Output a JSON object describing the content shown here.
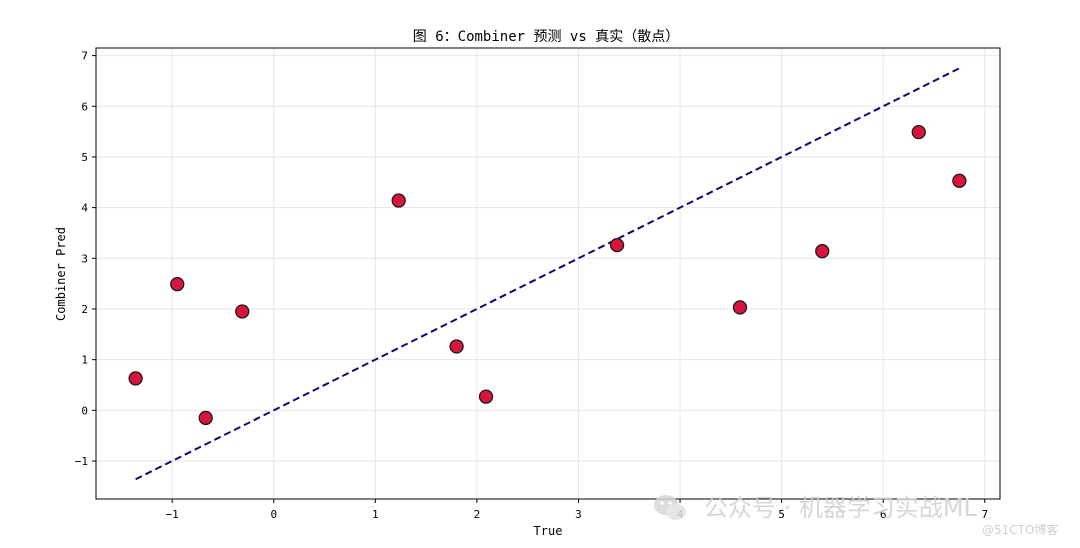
{
  "chart_data": {
    "type": "scatter",
    "title": "图 6：Combiner 预测 vs 真实（散点）",
    "xlabel": "True",
    "ylabel": "Combiner Pred",
    "xlim": [
      -1.75,
      7.15
    ],
    "ylim": [
      -1.75,
      7.15
    ],
    "xticks": [
      -1,
      0,
      1,
      2,
      3,
      4,
      5,
      6,
      7
    ],
    "yticks": [
      -1,
      0,
      1,
      2,
      3,
      4,
      5,
      6,
      7
    ],
    "grid": true,
    "points": [
      {
        "x": -1.36,
        "y": 0.63
      },
      {
        "x": -0.95,
        "y": 2.49
      },
      {
        "x": -0.67,
        "y": -0.15
      },
      {
        "x": -0.31,
        "y": 1.95
      },
      {
        "x": 1.23,
        "y": 4.14
      },
      {
        "x": 1.8,
        "y": 1.26
      },
      {
        "x": 2.09,
        "y": 0.27
      },
      {
        "x": 3.38,
        "y": 3.26
      },
      {
        "x": 4.59,
        "y": 2.03
      },
      {
        "x": 5.4,
        "y": 3.14
      },
      {
        "x": 6.35,
        "y": 5.49
      },
      {
        "x": 6.75,
        "y": 4.53
      }
    ],
    "reference_line": {
      "x": [
        -1.36,
        6.75
      ],
      "y": [
        -1.36,
        6.75
      ],
      "style": "dashed",
      "color": "#0a0a78"
    },
    "marker_color": "#d7143c",
    "marker_edge_color": "#1a1a1a"
  },
  "watermark": {
    "text": "公众号 · 机器学习实战ML",
    "credit": "@51CTO博客",
    "icon": "wechat-icon"
  }
}
